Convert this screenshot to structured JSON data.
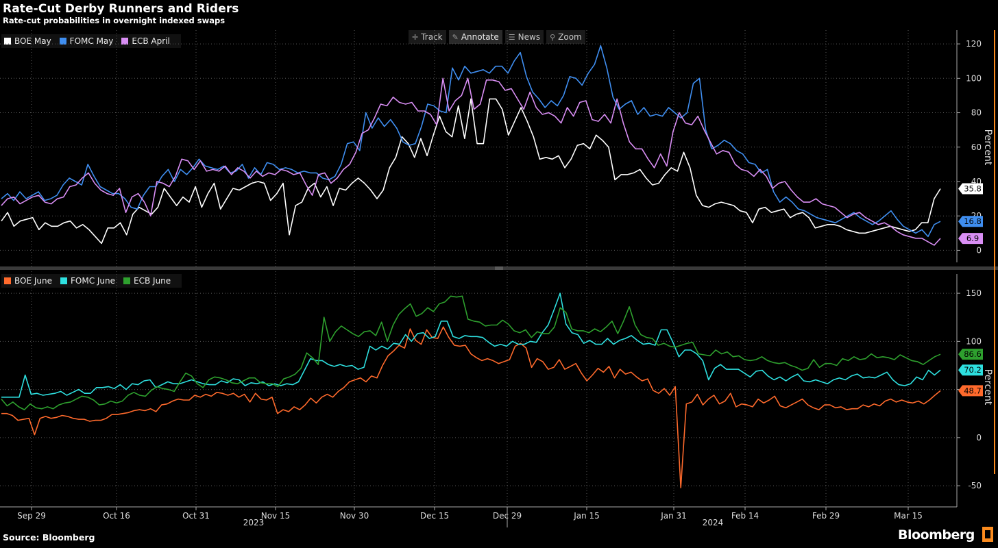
{
  "header": {
    "title": "Rate-Cut Derby Runners and Riders",
    "subtitle": "Rate-cut probabilities in overnight indexed swaps"
  },
  "toolbar": {
    "buttons": [
      {
        "label": "Track",
        "icon": "crosshair-icon"
      },
      {
        "label": "Annotate",
        "icon": "pencil-icon"
      },
      {
        "label": "News",
        "icon": "news-icon"
      },
      {
        "label": "Zoom",
        "icon": "search-icon"
      }
    ]
  },
  "footer": {
    "source": "Source: Bloomberg",
    "logo": "Bloomberg"
  },
  "x_axis": {
    "tick_labels": [
      "Sep 29",
      "Oct 16",
      "Oct 31",
      "Nov 15",
      "Nov 30",
      "Dec 15",
      "Dec 29",
      "Jan 15",
      "Jan 31",
      "Feb 14",
      "Feb 29",
      "Mar 15"
    ],
    "year_labels": [
      "2023",
      "2024"
    ]
  },
  "colors": {
    "boe_may": "#ffffff",
    "fomc_may": "#3f8ef0",
    "ecb_april": "#d98ef4",
    "boe_june": "#ff6a2c",
    "fomc_june": "#2ee0e0",
    "ecb_june": "#2ea02e",
    "grid": "#5a5a5a",
    "axis_accent": "#fb8b1e"
  },
  "chart_data": [
    {
      "type": "line",
      "ylabel": "Percent",
      "ylim": [
        -7,
        128
      ],
      "yticks": [
        0,
        20,
        40,
        60,
        80,
        100,
        120
      ],
      "legend_position": "top-left",
      "series": [
        {
          "name": "BOE May",
          "color": "#ffffff",
          "last_label": "35.8",
          "values": [
            17,
            22,
            14,
            17,
            18,
            19,
            12,
            16,
            14,
            14,
            16,
            17,
            13,
            15,
            12,
            8,
            4,
            13,
            13,
            16,
            9,
            21,
            25,
            23,
            21,
            25,
            36,
            31,
            26,
            31,
            28,
            37,
            25,
            33,
            39,
            24,
            30,
            36,
            35,
            37,
            39,
            40,
            39,
            29,
            33,
            39,
            9,
            26,
            28,
            36,
            39,
            31,
            37,
            26,
            36,
            35,
            39,
            42,
            39,
            35,
            30,
            35,
            48,
            54,
            66,
            62,
            54,
            65,
            55,
            67,
            78,
            69,
            66,
            84,
            65,
            88,
            62,
            62,
            88,
            88,
            82,
            67,
            75,
            83,
            75,
            66,
            53,
            54,
            53,
            55,
            48,
            53,
            61,
            62,
            59,
            67,
            64,
            60,
            41,
            44,
            44,
            45,
            47,
            42,
            38,
            39,
            44,
            48,
            46,
            57,
            48,
            32,
            26,
            25,
            27,
            28,
            27,
            26,
            23,
            22,
            16,
            24,
            25,
            22,
            23,
            24,
            19,
            21,
            22,
            19,
            13,
            14,
            15,
            15,
            14,
            12,
            11,
            10,
            10,
            11,
            12,
            13,
            14,
            13,
            12,
            11,
            12,
            16,
            16,
            30,
            35.8
          ]
        },
        {
          "name": "FOMC May",
          "color": "#3f8ef0",
          "last_label": "16.8",
          "values": [
            30,
            33,
            29,
            34,
            30,
            32,
            34,
            29,
            30,
            32,
            38,
            42,
            40,
            38,
            50,
            43,
            37,
            35,
            33,
            33,
            30,
            25,
            24,
            32,
            37,
            37,
            43,
            47,
            40,
            47,
            44,
            48,
            53,
            49,
            48,
            47,
            49,
            45,
            46,
            50,
            42,
            48,
            44,
            51,
            50,
            47,
            48,
            47,
            45,
            46,
            45,
            45,
            42,
            41,
            43,
            50,
            62,
            63,
            58,
            80,
            71,
            77,
            72,
            76,
            71,
            63,
            61,
            62,
            72,
            85,
            84,
            81,
            80,
            106,
            99,
            107,
            103,
            104,
            105,
            103,
            107,
            107,
            103,
            110,
            115,
            101,
            92,
            88,
            83,
            87,
            84,
            90,
            101,
            100,
            96,
            103,
            108,
            119,
            106,
            89,
            82,
            85,
            87,
            79,
            83,
            78,
            79,
            78,
            83,
            80,
            77,
            80,
            97,
            100,
            70,
            59,
            61,
            64,
            62,
            58,
            56,
            51,
            50,
            45,
            47,
            34,
            28,
            31,
            28,
            24,
            23,
            21,
            19,
            18,
            17,
            16,
            18,
            20,
            22,
            19,
            17,
            15,
            17,
            20,
            23,
            18,
            14,
            12,
            10,
            12,
            8,
            15,
            16.8
          ]
        },
        {
          "name": "ECB April",
          "color": "#d98ef4",
          "last_label": "6.9",
          "values": [
            26,
            30,
            31,
            27,
            29,
            31,
            32,
            28,
            27,
            30,
            31,
            37,
            38,
            42,
            45,
            39,
            35,
            33,
            32,
            36,
            22,
            31,
            33,
            28,
            20,
            40,
            39,
            37,
            43,
            53,
            52,
            47,
            52,
            46,
            47,
            46,
            49,
            44,
            48,
            46,
            42,
            46,
            43,
            45,
            44,
            47,
            46,
            44,
            45,
            38,
            32,
            44,
            45,
            39,
            42,
            47,
            50,
            57,
            68,
            70,
            77,
            85,
            84,
            89,
            86,
            85,
            86,
            81,
            81,
            79,
            73,
            100,
            81,
            87,
            90,
            100,
            82,
            85,
            99,
            99,
            98,
            93,
            94,
            88,
            82,
            92,
            83,
            79,
            80,
            78,
            74,
            83,
            78,
            86,
            87,
            76,
            75,
            79,
            74,
            88,
            74,
            63,
            59,
            59,
            53,
            48,
            56,
            49,
            69,
            80,
            74,
            73,
            78,
            70,
            63,
            56,
            58,
            57,
            50,
            47,
            46,
            43,
            47,
            43,
            36,
            39,
            40,
            35,
            31,
            28,
            28,
            30,
            27,
            26,
            25,
            22,
            19,
            21,
            22,
            19,
            17,
            15,
            16,
            14,
            11,
            9,
            8,
            7,
            7,
            5,
            3,
            6.9
          ]
        }
      ]
    },
    {
      "type": "line",
      "ylabel": "Percent",
      "ylim": [
        -72,
        170
      ],
      "yticks": [
        -50,
        0,
        50,
        100,
        150
      ],
      "legend_position": "top-left",
      "series": [
        {
          "name": "BOE June",
          "color": "#ff6a2c",
          "last_label": "48.7",
          "values": [
            25,
            25,
            23,
            18,
            19,
            20,
            3,
            20,
            22,
            20,
            21,
            23,
            22,
            20,
            19,
            19,
            17,
            18,
            18,
            20,
            24,
            24,
            25,
            26,
            28,
            29,
            28,
            30,
            27,
            34,
            35,
            38,
            40,
            39,
            39,
            44,
            42,
            45,
            43,
            47,
            46,
            44,
            46,
            42,
            45,
            37,
            46,
            40,
            39,
            42,
            25,
            29,
            27,
            32,
            29,
            34,
            41,
            36,
            42,
            45,
            42,
            48,
            52,
            58,
            60,
            62,
            58,
            64,
            62,
            75,
            85,
            90,
            96,
            93,
            113,
            101,
            97,
            112,
            104,
            103,
            115,
            104,
            96,
            95,
            96,
            87,
            83,
            80,
            82,
            80,
            77,
            79,
            81,
            95,
            98,
            93,
            73,
            82,
            79,
            71,
            73,
            81,
            71,
            74,
            77,
            67,
            59,
            65,
            72,
            68,
            74,
            62,
            71,
            66,
            68,
            63,
            59,
            61,
            49,
            46,
            51,
            44,
            53,
            -52,
            35,
            37,
            45,
            34,
            40,
            44,
            35,
            38,
            46,
            32,
            35,
            34,
            32,
            40,
            36,
            39,
            43,
            33,
            31,
            34,
            37,
            40,
            34,
            31,
            29,
            34,
            34,
            31,
            32,
            29,
            30,
            30,
            34,
            32,
            35,
            33,
            38,
            40,
            37,
            39,
            37,
            36,
            38,
            35,
            39,
            44,
            48.7
          ]
        },
        {
          "name": "FOMC June",
          "color": "#2ee0e0",
          "last_label": "70.2",
          "values": [
            42,
            42,
            42,
            42,
            65,
            45,
            46,
            44,
            45,
            46,
            48,
            44,
            47,
            50,
            46,
            46,
            52,
            52,
            53,
            51,
            55,
            50,
            56,
            55,
            59,
            60,
            52,
            55,
            58,
            56,
            56,
            58,
            60,
            58,
            56,
            55,
            55,
            59,
            57,
            61,
            60,
            54,
            57,
            56,
            58,
            54,
            56,
            54,
            56,
            55,
            58,
            70,
            82,
            80,
            80,
            76,
            74,
            76,
            74,
            75,
            71,
            73,
            95,
            91,
            95,
            92,
            98,
            97,
            107,
            100,
            108,
            109,
            103,
            105,
            121,
            121,
            105,
            103,
            106,
            105,
            105,
            104,
            99,
            95,
            97,
            95,
            100,
            97,
            97,
            100,
            99,
            109,
            117,
            133,
            150,
            118,
            109,
            107,
            98,
            101,
            97,
            97,
            103,
            97,
            101,
            103,
            106,
            101,
            97,
            98,
            96,
            112,
            112,
            99,
            84,
            91,
            91,
            87,
            80,
            60,
            72,
            76,
            71,
            71,
            71,
            67,
            63,
            69,
            70,
            64,
            60,
            63,
            59,
            63,
            66,
            59,
            58,
            60,
            58,
            56,
            60,
            62,
            60,
            64,
            66,
            62,
            63,
            62,
            65,
            68,
            60,
            55,
            54,
            56,
            63,
            60,
            70,
            65,
            70.2
          ]
        },
        {
          "name": "ECB June",
          "color": "#2ea02e",
          "last_label": "86.6",
          "values": [
            40,
            33,
            37,
            32,
            29,
            35,
            31,
            30,
            32,
            30,
            34,
            36,
            37,
            40,
            43,
            42,
            39,
            34,
            35,
            38,
            36,
            38,
            44,
            47,
            44,
            43,
            49,
            53,
            51,
            50,
            48,
            58,
            67,
            64,
            56,
            52,
            60,
            63,
            62,
            60,
            57,
            56,
            59,
            62,
            62,
            57,
            56,
            56,
            53,
            61,
            63,
            66,
            72,
            88,
            83,
            76,
            125,
            100,
            110,
            116,
            112,
            108,
            105,
            110,
            111,
            106,
            120,
            100,
            117,
            128,
            134,
            139,
            126,
            129,
            135,
            131,
            139,
            141,
            147,
            146,
            147,
            123,
            121,
            120,
            116,
            117,
            117,
            122,
            118,
            111,
            109,
            112,
            104,
            110,
            108,
            108,
            115,
            135,
            130,
            113,
            111,
            111,
            109,
            113,
            110,
            115,
            121,
            108,
            121,
            136,
            117,
            107,
            104,
            103,
            96,
            98,
            95,
            94,
            96,
            98,
            99,
            87,
            86,
            85,
            91,
            87,
            89,
            84,
            85,
            81,
            80,
            81,
            84,
            80,
            78,
            77,
            78,
            75,
            73,
            70,
            72,
            81,
            73,
            77,
            77,
            75,
            82,
            80,
            84,
            81,
            82,
            87,
            83,
            84,
            83,
            81,
            86,
            83,
            80,
            79,
            76,
            80,
            84,
            86.6
          ]
        }
      ]
    }
  ]
}
